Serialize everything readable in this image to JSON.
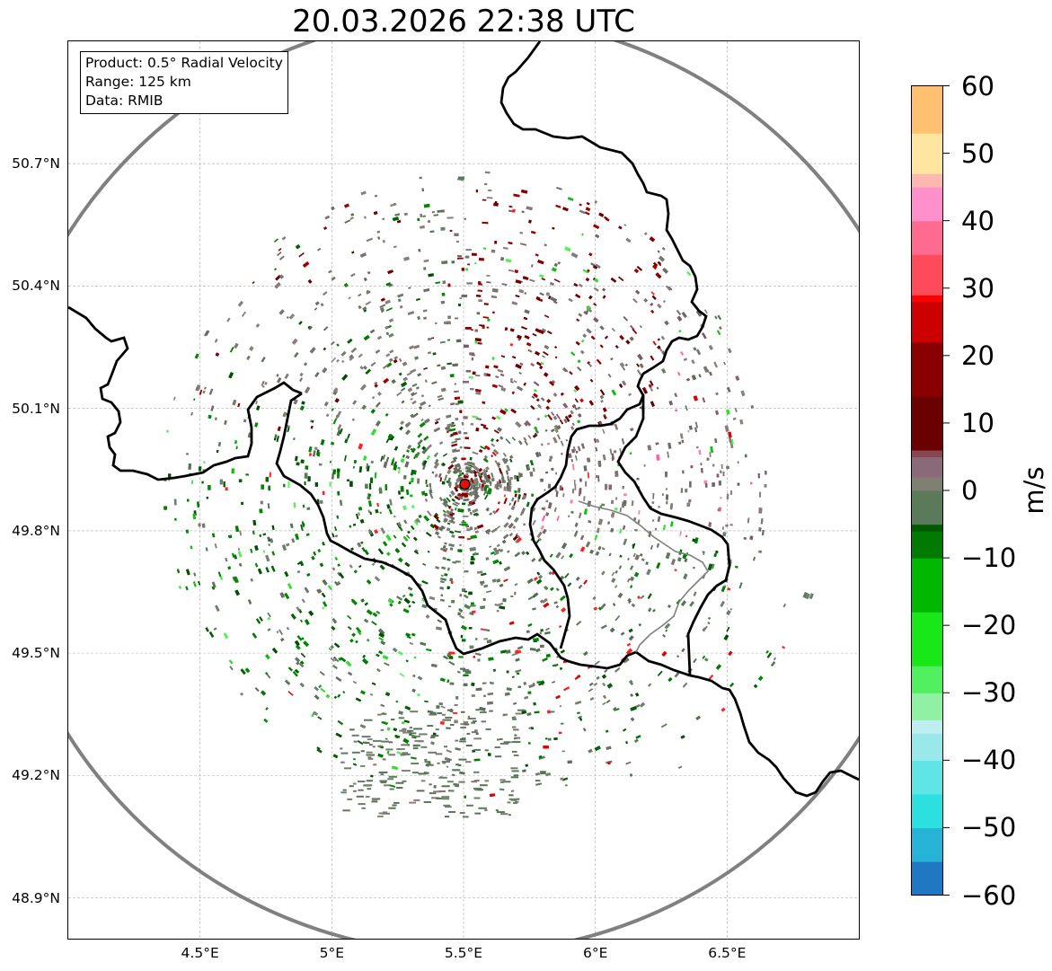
{
  "title": "20.03.2026 22:38 UTC",
  "info_box": {
    "product": "Product: 0.5° Radial Velocity",
    "range": "Range: 125 km",
    "data": "Data: RMIB"
  },
  "map": {
    "lon_range": [
      4.0,
      7.0
    ],
    "lat_range": [
      48.8,
      51.0
    ],
    "radar_site": {
      "lon": 5.505,
      "lat": 49.914
    },
    "range_km": 125,
    "range_ring_color": "#808080",
    "border_color": "#000000",
    "gridlines": true
  },
  "axes": {
    "lat_ticks": [
      {
        "value": 50.7,
        "label": "50.7°N"
      },
      {
        "value": 50.4,
        "label": "50.4°N"
      },
      {
        "value": 50.1,
        "label": "50.1°N"
      },
      {
        "value": 49.8,
        "label": "49.8°N"
      },
      {
        "value": 49.5,
        "label": "49.5°N"
      },
      {
        "value": 49.2,
        "label": "49.2°N"
      },
      {
        "value": 48.9,
        "label": "48.9°N"
      }
    ],
    "lon_ticks": [
      {
        "value": 4.5,
        "label": "4.5°E"
      },
      {
        "value": 5.0,
        "label": "5°E"
      },
      {
        "value": 5.5,
        "label": "5.5°E"
      },
      {
        "value": 6.0,
        "label": "6°E"
      },
      {
        "value": 6.5,
        "label": "6.5°E"
      }
    ]
  },
  "colorbar": {
    "unit": "m/s",
    "min": -60,
    "max": 60,
    "ticks": [
      {
        "value": 60,
        "label": "60"
      },
      {
        "value": 50,
        "label": "50"
      },
      {
        "value": 40,
        "label": "40"
      },
      {
        "value": 30,
        "label": "30"
      },
      {
        "value": 20,
        "label": "20"
      },
      {
        "value": 10,
        "label": "10"
      },
      {
        "value": 0,
        "label": "0"
      },
      {
        "value": -10,
        "label": "−10"
      },
      {
        "value": -20,
        "label": "−20"
      },
      {
        "value": -30,
        "label": "−30"
      },
      {
        "value": -40,
        "label": "−40"
      },
      {
        "value": -50,
        "label": "−50"
      },
      {
        "value": -60,
        "label": "−60"
      }
    ],
    "stops": [
      {
        "v": -60,
        "c": "#1f78c1"
      },
      {
        "v": -55,
        "c": "#26b3d6"
      },
      {
        "v": -50,
        "c": "#2de0e0"
      },
      {
        "v": -45,
        "c": "#5fe5e5"
      },
      {
        "v": -40,
        "c": "#9ae9ea"
      },
      {
        "v": -36,
        "c": "#bdeef0"
      },
      {
        "v": -34,
        "c": "#90f0a4"
      },
      {
        "v": -30,
        "c": "#50f060"
      },
      {
        "v": -26,
        "c": "#18e818"
      },
      {
        "v": -18,
        "c": "#00b800"
      },
      {
        "v": -10,
        "c": "#007a00"
      },
      {
        "v": -6,
        "c": "#005a00"
      },
      {
        "v": -5,
        "c": "#5a7a5a"
      },
      {
        "v": 0,
        "c": "#7f7f72"
      },
      {
        "v": 2,
        "c": "#8a6a78"
      },
      {
        "v": 5,
        "c": "#874650"
      },
      {
        "v": 6,
        "c": "#6a0000"
      },
      {
        "v": 14,
        "c": "#8a0000"
      },
      {
        "v": 22,
        "c": "#cc0000"
      },
      {
        "v": 28,
        "c": "#ff0000"
      },
      {
        "v": 29,
        "c": "#ff4a5a"
      },
      {
        "v": 35,
        "c": "#ff6a90"
      },
      {
        "v": 40,
        "c": "#ff90cc"
      },
      {
        "v": 45,
        "c": "#ffb8b0"
      },
      {
        "v": 47,
        "c": "#ffe6a0"
      },
      {
        "v": 53,
        "c": "#ffc070"
      },
      {
        "v": 60,
        "c": "#ff9a50"
      }
    ]
  }
}
